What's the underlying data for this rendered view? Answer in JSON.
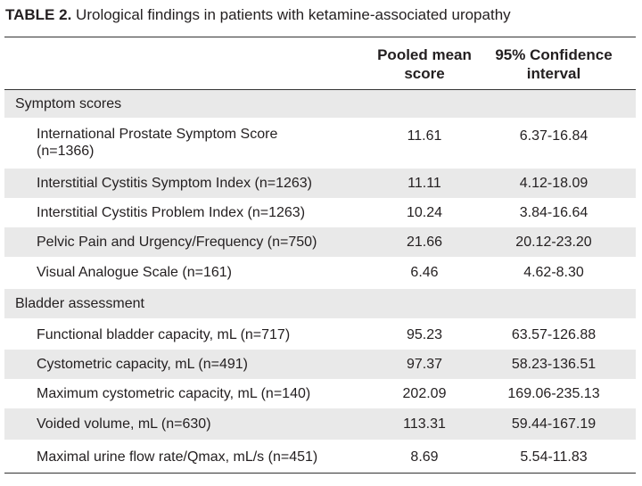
{
  "table": {
    "title_bold": "TABLE 2.",
    "title_text": "Urological findings in patients with ketamine-associated uropathy",
    "header": {
      "col1": "Pooled mean score",
      "col2": "95% Confidence interval"
    },
    "rows": [
      {
        "type": "section",
        "label": "Symptom scores"
      },
      {
        "type": "data",
        "label": "International Prostate Symptom Score (n=1366)",
        "mean": "11.61",
        "ci": "6.37-16.84"
      },
      {
        "type": "data",
        "label": "Interstitial Cystitis Symptom Index (n=1263)",
        "mean": "11.11",
        "ci": "4.12-18.09"
      },
      {
        "type": "data",
        "label": "Interstitial Cystitis Problem Index (n=1263)",
        "mean": "10.24",
        "ci": "3.84-16.64"
      },
      {
        "type": "data",
        "label": "Pelvic Pain and Urgency/Frequency (n=750)",
        "mean": "21.66",
        "ci": "20.12-23.20"
      },
      {
        "type": "data",
        "label": "Visual Analogue Scale (n=161)",
        "mean": "6.46",
        "ci": "4.62-8.30"
      },
      {
        "type": "section",
        "label": "Bladder assessment"
      },
      {
        "type": "data",
        "label": "Functional bladder capacity, mL (n=717)",
        "mean": "95.23",
        "ci": "63.57-126.88"
      },
      {
        "type": "data",
        "label": "Cystometric capacity, mL (n=491)",
        "mean": "97.37",
        "ci": "58.23-136.51"
      },
      {
        "type": "data",
        "label": "Maximum cystometric capacity, mL (n=140)",
        "mean": "202.09",
        "ci": "169.06-235.13"
      },
      {
        "type": "data",
        "label": "Voided volume, mL (n=630)",
        "mean": "113.31",
        "ci": "59.44-167.19"
      },
      {
        "type": "data",
        "label": "Maximal urine flow rate/Qmax, mL/s (n=451)",
        "mean": "8.69",
        "ci": "5.54-11.83"
      }
    ]
  }
}
